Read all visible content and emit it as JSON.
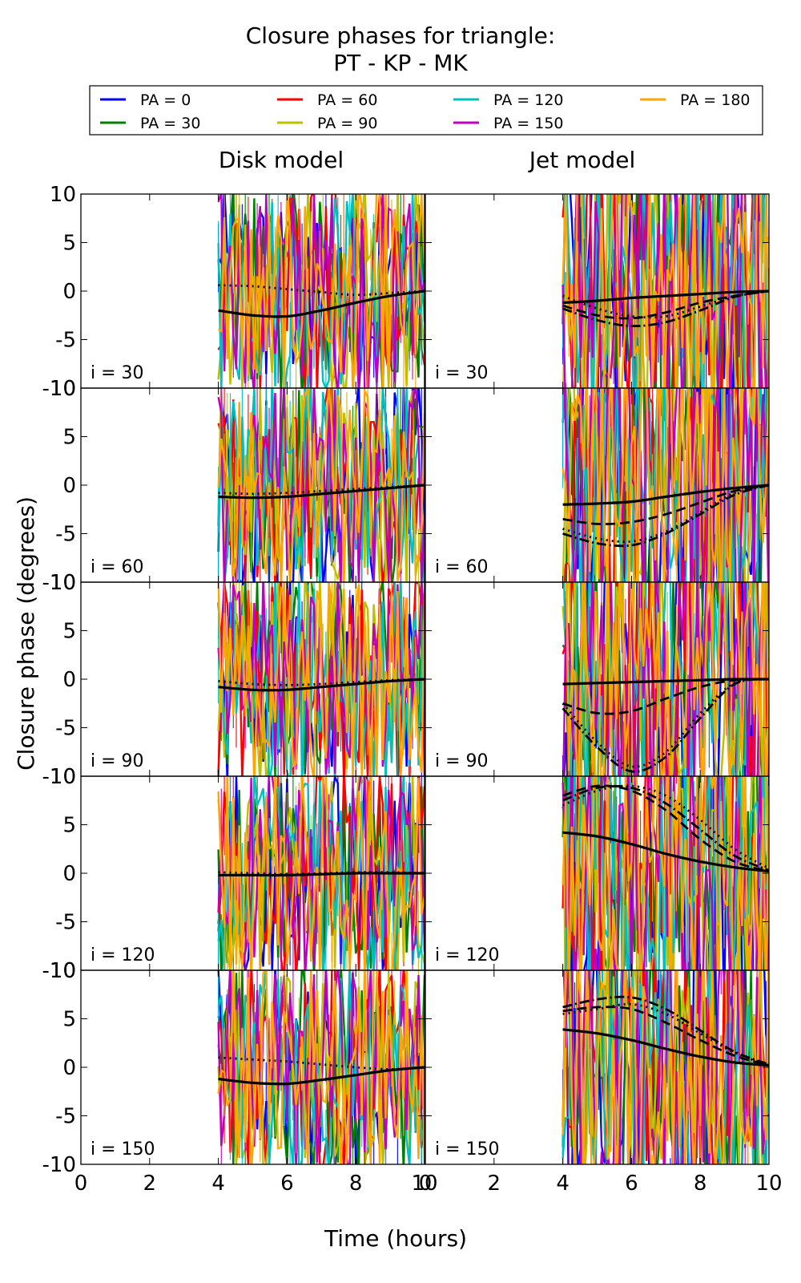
{
  "chart_data": {
    "type": "line",
    "title": [
      "Closure phases for triangle:",
      "PT - KP - MK"
    ],
    "xlabel": "Time (hours)",
    "ylabel": "Closure phase (degrees)",
    "xlim": [
      0,
      10
    ],
    "ylim": [
      -10,
      10
    ],
    "x_ticks": [
      0,
      2,
      4,
      6,
      8,
      10
    ],
    "y_ticks": [
      -10,
      -5,
      0,
      5,
      10
    ],
    "grid": false,
    "legend_position": "top",
    "column_titles": [
      "Disk model",
      "Jet model"
    ],
    "row_labels": [
      "i = 30",
      "i = 60",
      "i = 90",
      "i = 120",
      "i = 150"
    ],
    "legend": [
      {
        "label": "PA = 0",
        "color": "#0000ff"
      },
      {
        "label": "PA = 30",
        "color": "#008000"
      },
      {
        "label": "PA = 60",
        "color": "#ff0000"
      },
      {
        "label": "PA = 90",
        "color": "#bfbf00"
      },
      {
        "label": "PA = 120",
        "color": "#00bfbf"
      },
      {
        "label": "PA = 150",
        "color": "#bf00bf"
      },
      {
        "label": "PA = 180",
        "color": "#ffa500"
      }
    ],
    "data_time_range": [
      4,
      10
    ],
    "panels": [
      {
        "column": "Disk model",
        "row": "i = 30",
        "model_curves": [
          {
            "style": "solid",
            "x": [
              4,
              5,
              6,
              7,
              8,
              9,
              10
            ],
            "y": [
              -2.0,
              -2.5,
              -2.6,
              -2.0,
              -1.2,
              -0.5,
              0.0
            ]
          },
          {
            "style": "dotted",
            "x": [
              4,
              5,
              6,
              7,
              8,
              9,
              10
            ],
            "y": [
              0.6,
              0.5,
              0.2,
              -0.1,
              -0.4,
              -0.2,
              0.0
            ]
          }
        ]
      },
      {
        "column": "Jet model",
        "row": "i = 30",
        "model_curves": [
          {
            "style": "solid",
            "x": [
              4,
              5,
              6,
              7,
              8,
              9,
              10
            ],
            "y": [
              -1.2,
              -1.0,
              -0.7,
              -0.5,
              -0.3,
              -0.1,
              0.0
            ]
          },
          {
            "style": "dashed",
            "x": [
              4,
              5,
              6,
              7,
              8,
              9,
              10
            ],
            "y": [
              -1.5,
              -2.5,
              -2.8,
              -2.2,
              -1.2,
              -0.5,
              0.0
            ]
          },
          {
            "style": "dashdot",
            "x": [
              4,
              5,
              6,
              7,
              8,
              9,
              10
            ],
            "y": [
              -1.8,
              -3.0,
              -3.6,
              -3.2,
              -2.0,
              -0.6,
              0.0
            ]
          },
          {
            "style": "dotted",
            "x": [
              4,
              5,
              6,
              7,
              8,
              9,
              10
            ],
            "y": [
              -0.5,
              -1.8,
              -2.6,
              -2.6,
              -1.6,
              -0.5,
              0.0
            ]
          }
        ]
      },
      {
        "column": "Disk model",
        "row": "i = 60",
        "model_curves": [
          {
            "style": "solid",
            "x": [
              4,
              5,
              6,
              7,
              8,
              9,
              10
            ],
            "y": [
              -1.2,
              -1.3,
              -1.2,
              -0.9,
              -0.6,
              -0.3,
              0.0
            ]
          },
          {
            "style": "dotted",
            "x": [
              4,
              5,
              6,
              7,
              8,
              9,
              10
            ],
            "y": [
              -0.8,
              -0.9,
              -0.8,
              -0.6,
              -0.4,
              -0.2,
              0.0
            ]
          }
        ]
      },
      {
        "column": "Jet model",
        "row": "i = 60",
        "model_curves": [
          {
            "style": "solid",
            "x": [
              4,
              5,
              6,
              7,
              8,
              9,
              10
            ],
            "y": [
              -2.0,
              -1.9,
              -1.7,
              -1.2,
              -0.7,
              -0.3,
              0.0
            ]
          },
          {
            "style": "dashed",
            "x": [
              4,
              5,
              6,
              7,
              8,
              9,
              10
            ],
            "y": [
              -3.5,
              -4.0,
              -3.8,
              -3.0,
              -1.8,
              -0.6,
              0.0
            ]
          },
          {
            "style": "dashdot",
            "x": [
              4,
              5,
              6,
              7,
              8,
              9,
              10
            ],
            "y": [
              -5.0,
              -6.0,
              -6.2,
              -5.0,
              -3.0,
              -1.0,
              0.0
            ]
          },
          {
            "style": "dotted",
            "x": [
              4,
              5,
              6,
              7,
              8,
              9,
              10
            ],
            "y": [
              -4.5,
              -5.5,
              -5.8,
              -4.8,
              -2.8,
              -0.8,
              0.0
            ]
          }
        ]
      },
      {
        "column": "Disk model",
        "row": "i = 90",
        "model_curves": [
          {
            "style": "solid",
            "x": [
              4,
              5,
              6,
              7,
              8,
              9,
              10
            ],
            "y": [
              -0.8,
              -1.1,
              -1.1,
              -0.8,
              -0.5,
              -0.2,
              0.0
            ]
          },
          {
            "style": "dotted",
            "x": [
              4,
              5,
              6,
              7,
              8,
              9,
              10
            ],
            "y": [
              -0.2,
              -0.5,
              -0.6,
              -0.5,
              -0.3,
              -0.1,
              0.0
            ]
          }
        ]
      },
      {
        "column": "Jet model",
        "row": "i = 90",
        "model_curves": [
          {
            "style": "solid",
            "x": [
              4,
              5,
              6,
              7,
              8,
              9,
              10
            ],
            "y": [
              -0.5,
              -0.4,
              -0.3,
              -0.2,
              -0.1,
              0.0,
              0.0
            ]
          },
          {
            "style": "dashed",
            "x": [
              4,
              5,
              6,
              7,
              8,
              9,
              10
            ],
            "y": [
              -2.5,
              -3.5,
              -3.3,
              -2.0,
              -0.8,
              -0.1,
              0.0
            ]
          },
          {
            "style": "dashdot",
            "x": [
              4,
              5,
              6,
              7,
              8,
              9,
              10
            ],
            "y": [
              -3.0,
              -7.0,
              -9.5,
              -8.0,
              -4.0,
              -0.5,
              0.0
            ]
          },
          {
            "style": "dotted",
            "x": [
              4,
              5,
              6,
              7,
              8,
              9,
              10
            ],
            "y": [
              -2.5,
              -6.5,
              -9.0,
              -7.5,
              -3.5,
              -0.4,
              0.0
            ]
          }
        ]
      },
      {
        "column": "Disk model",
        "row": "i = 120",
        "model_curves": [
          {
            "style": "solid",
            "x": [
              4,
              5,
              6,
              7,
              8,
              9,
              10
            ],
            "y": [
              -0.2,
              -0.2,
              -0.2,
              -0.1,
              0.0,
              0.0,
              0.0
            ]
          },
          {
            "style": "dotted",
            "x": [
              4,
              5,
              6,
              7,
              8,
              9,
              10
            ],
            "y": [
              0.1,
              0.0,
              -0.1,
              0.0,
              0.1,
              0.1,
              0.0
            ]
          }
        ]
      },
      {
        "column": "Jet model",
        "row": "i = 120",
        "model_curves": [
          {
            "style": "solid",
            "x": [
              4,
              5,
              6,
              7,
              8,
              9,
              10
            ],
            "y": [
              4.2,
              3.8,
              3.0,
              2.0,
              1.2,
              0.6,
              0.2
            ]
          },
          {
            "style": "dashed",
            "x": [
              4,
              5,
              6,
              7,
              8,
              9,
              10
            ],
            "y": [
              8.0,
              9.0,
              8.5,
              6.5,
              3.5,
              1.2,
              0.2
            ]
          },
          {
            "style": "dashdot",
            "x": [
              4,
              5,
              6,
              7,
              8,
              9,
              10
            ],
            "y": [
              7.5,
              8.8,
              8.8,
              7.2,
              4.5,
              1.8,
              0.3
            ]
          },
          {
            "style": "dotted",
            "x": [
              4,
              5,
              6,
              7,
              8,
              9,
              10
            ],
            "y": [
              7.0,
              8.5,
              9.0,
              8.0,
              5.5,
              2.5,
              0.5
            ]
          }
        ]
      },
      {
        "column": "Disk model",
        "row": "i = 150",
        "model_curves": [
          {
            "style": "solid",
            "x": [
              4,
              5,
              6,
              7,
              8,
              9,
              10
            ],
            "y": [
              -1.2,
              -1.6,
              -1.7,
              -1.3,
              -0.8,
              -0.3,
              0.0
            ]
          },
          {
            "style": "dotted",
            "x": [
              4,
              5,
              6,
              7,
              8,
              9,
              10
            ],
            "y": [
              1.0,
              0.8,
              0.6,
              0.3,
              0.0,
              -0.2,
              0.0
            ]
          }
        ]
      },
      {
        "column": "Jet model",
        "row": "i = 150",
        "model_curves": [
          {
            "style": "solid",
            "x": [
              4,
              5,
              6,
              7,
              8,
              9,
              10
            ],
            "y": [
              3.9,
              3.5,
              2.8,
              1.9,
              1.1,
              0.5,
              0.2
            ]
          },
          {
            "style": "dashed",
            "x": [
              4,
              5,
              6,
              7,
              8,
              9,
              10
            ],
            "y": [
              5.8,
              6.2,
              6.0,
              4.6,
              2.8,
              1.2,
              0.2
            ]
          },
          {
            "style": "dashdot",
            "x": [
              4,
              5,
              6,
              7,
              8,
              9,
              10
            ],
            "y": [
              6.2,
              7.0,
              7.2,
              6.0,
              3.8,
              1.6,
              0.3
            ]
          },
          {
            "style": "dotted",
            "x": [
              4,
              5,
              6,
              7,
              8,
              9,
              10
            ],
            "y": [
              5.5,
              6.0,
              6.5,
              5.5,
              3.5,
              1.5,
              0.2
            ]
          }
        ]
      }
    ]
  }
}
